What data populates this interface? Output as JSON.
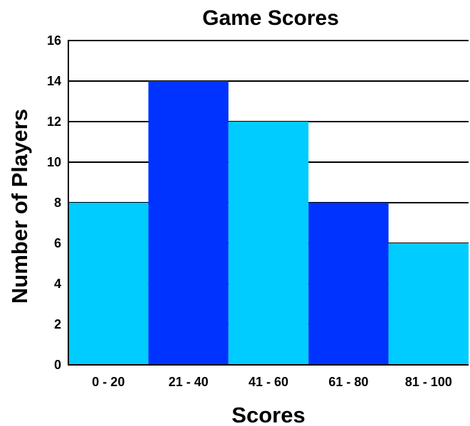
{
  "chart_data": {
    "type": "bar",
    "title": "Game Scores",
    "xlabel": "Scores",
    "ylabel": "Number of Players",
    "categories": [
      "0 - 20",
      "21 - 40",
      "41 - 60",
      "61 - 80",
      "81 - 100"
    ],
    "values": [
      8,
      14,
      12,
      8,
      6
    ],
    "ylim": [
      0,
      16
    ],
    "yticks": [
      "0",
      "2",
      "4",
      "6",
      "8",
      "10",
      "12",
      "14",
      "16"
    ],
    "bar_colors": [
      "#00ccff",
      "#0033ff",
      "#00ccff",
      "#0033ff",
      "#00ccff"
    ],
    "grid": true,
    "legend": "none"
  }
}
